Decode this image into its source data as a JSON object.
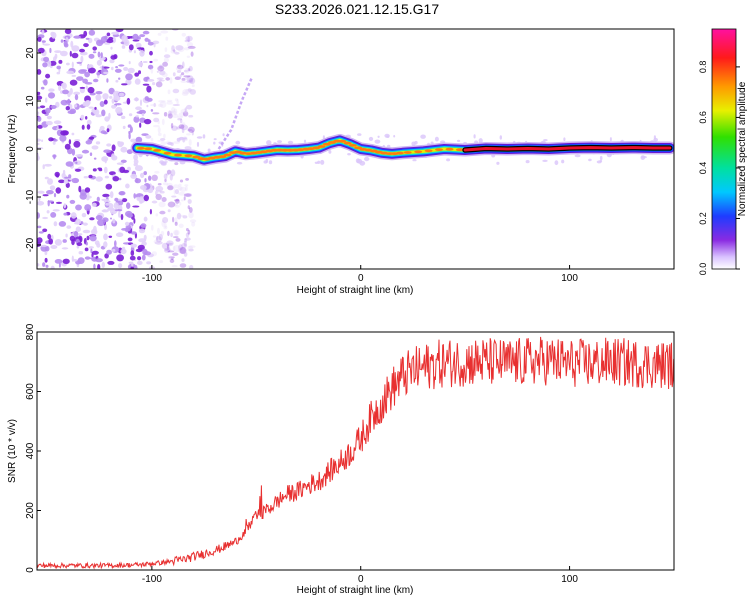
{
  "title": "S233.2026.021.12.15.G17",
  "colors": {
    "background": "#ffffff",
    "axis": "#000000",
    "snr_line": "#e83030",
    "ridge_core": "#e8102a",
    "ridge_outline": "#000000",
    "noise": "#8a2be2"
  },
  "chart_data": [
    {
      "type": "heatmap",
      "name": "spectrogram",
      "xlabel": "Height of straight line (km)",
      "ylabel": "Frequency (Hz)",
      "xlim": [
        -155,
        150
      ],
      "ylim": [
        -25,
        25
      ],
      "xticks": [
        -100,
        0,
        100
      ],
      "xtick_labels": [
        "-100",
        "0",
        "100"
      ],
      "yticks": [
        -20,
        -10,
        0,
        10,
        20
      ],
      "ytick_labels": [
        "-20",
        "-10",
        "0",
        "10",
        "20"
      ],
      "grid": false,
      "ridge": {
        "x": [
          -107,
          -100,
          -90,
          -80,
          -75,
          -70,
          -65,
          -60,
          -55,
          -50,
          -45,
          -40,
          -35,
          -30,
          -25,
          -20,
          -15,
          -10,
          -5,
          0,
          5,
          10,
          15,
          20,
          30,
          40,
          50,
          60,
          70,
          80,
          90,
          100,
          110,
          120,
          130,
          140,
          148
        ],
        "y": [
          0.2,
          0,
          -1.2,
          -1.5,
          -2.2,
          -1.8,
          -1.5,
          -0.5,
          -1.0,
          -0.8,
          -0.5,
          -0.2,
          -0.3,
          -0.2,
          0,
          0.3,
          1.2,
          1.8,
          1.0,
          0.0,
          -0.3,
          -0.8,
          -1.0,
          -0.8,
          -0.5,
          0.0,
          -0.2,
          0.1,
          0.0,
          0.1,
          0.0,
          0.2,
          0.3,
          0.2,
          0.3,
          0.2,
          0.2
        ]
      },
      "ghost_trace": {
        "x": [
          -68,
          -62,
          -57,
          -52
        ],
        "y": [
          0,
          4,
          10,
          15
        ]
      },
      "noise_region_km": [
        -155,
        -100
      ],
      "colorbar": {
        "label": "Normalized spectral amplitude",
        "range": [
          0,
          0.95
        ],
        "ticks": [
          0.0,
          0.2,
          0.4,
          0.6,
          0.8
        ],
        "tick_labels": [
          "0.0",
          "0.2",
          "0.4",
          "0.6",
          "0.8"
        ],
        "colormap": "rainbow (white-violet-blue-cyan-green-yellow-orange-red-magenta)"
      }
    },
    {
      "type": "line",
      "name": "snr",
      "xlabel": "Height of straight line (km)",
      "ylabel": "SNR (10 * v/v)",
      "xlim": [
        -155,
        150
      ],
      "ylim": [
        0,
        800
      ],
      "xticks": [
        -100,
        0,
        100
      ],
      "xtick_labels": [
        "-100",
        "0",
        "100"
      ],
      "yticks": [
        0,
        200,
        400,
        600,
        800
      ],
      "ytick_labels": [
        "0",
        "200",
        "400",
        "600",
        "800"
      ],
      "grid": false,
      "series": [
        {
          "name": "SNR",
          "x": [
            -155,
            -140,
            -120,
            -105,
            -95,
            -85,
            -75,
            -68,
            -60,
            -55,
            -50,
            -45,
            -40,
            -35,
            -30,
            -25,
            -20,
            -15,
            -10,
            -5,
            0,
            5,
            10,
            15,
            20,
            25,
            30,
            35,
            40,
            50,
            60,
            70,
            80,
            90,
            100,
            110,
            120,
            130,
            140,
            150
          ],
          "values": [
            15,
            15,
            15,
            18,
            25,
            35,
            55,
            70,
            95,
            130,
            180,
            200,
            230,
            255,
            265,
            285,
            300,
            330,
            360,
            395,
            440,
            510,
            560,
            610,
            650,
            670,
            680,
            690,
            695,
            700,
            700,
            695,
            700,
            705,
            695,
            695,
            700,
            695,
            690,
            690
          ]
        }
      ]
    }
  ]
}
